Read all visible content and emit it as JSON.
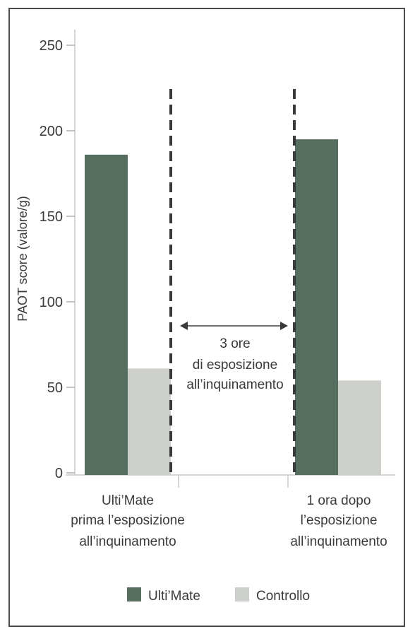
{
  "chart_data": {
    "type": "bar",
    "ylabel": "PAOT score (valore/g)",
    "ylim": [
      0,
      250
    ],
    "yticks": [
      0,
      50,
      100,
      150,
      200,
      250
    ],
    "categories": [
      [
        "Ulti’Mate",
        "prima l’esposizione",
        "all’inquinamento"
      ],
      [
        "1 ora dopo",
        "l’esposizione",
        "all’inquinamento"
      ]
    ],
    "series": [
      {
        "name": "Ulti’Mate",
        "color": "#566e60",
        "values": [
          186,
          195
        ]
      },
      {
        "name": "Controllo",
        "color": "#cdcfcb",
        "values": [
          61,
          54
        ]
      }
    ],
    "annotation": {
      "lines": [
        "3 ore",
        "di esposizione",
        "all’inquinamento"
      ]
    },
    "grid": false,
    "legend": "bottom-center"
  }
}
